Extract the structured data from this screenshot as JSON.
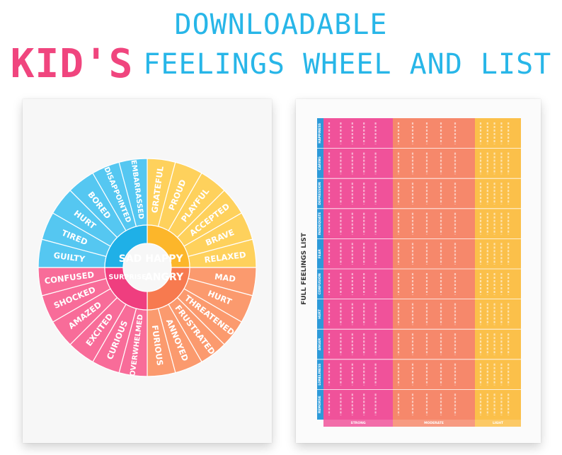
{
  "header": {
    "line1": "DOWNLOADABLE",
    "kids": "KID'S",
    "line2_rest": "FEELINGS WHEEL AND LIST"
  },
  "wheel": {
    "center": {
      "sad": "SAD",
      "happy": "HAPPY",
      "surprised": "SURPRISED",
      "angry": "ANGRY"
    },
    "outer_words": [
      "GRATEFUL",
      "PROUD",
      "PLAYFUL",
      "ACCEPTED",
      "BRAVE",
      "RELAXED",
      "MAD",
      "HURT",
      "THREATENED",
      "FRUSTRATED",
      "ANNOYED",
      "FURIOUS",
      "OVERWHELMED",
      "CURIOUS",
      "EXCITED",
      "AMAZED",
      "SHOCKED",
      "CONFUSED",
      "GUILTY",
      "TIRED",
      "HURT",
      "BORED",
      "DISAPPOINTED",
      "EMBARRASSED"
    ],
    "colors": {
      "happy_dark": "#fcb62a",
      "happy_light": "#fed15c",
      "angry_dark": "#f77a4f",
      "angry_light": "#fb9a6e",
      "surprised_dark": "#ef3e7f",
      "surprised_light": "#f86c99",
      "sad_dark": "#1fb0e7",
      "sad_light": "#55c7f1"
    }
  },
  "list": {
    "title": "FULL FEELINGS LIST",
    "rows": [
      "HAPPINESS",
      "CARING",
      "DEPRESSION",
      "INADEQUATE",
      "FEAR",
      "CONFUSION",
      "HURT",
      "ANGER",
      "LONELINESS",
      "REMORSE"
    ],
    "columns": [
      "STRONG",
      "MODERATE",
      "LIGHT"
    ],
    "colors": {
      "header": "#2d9ad9",
      "strong": "#f0529a",
      "moderate": "#f6886b",
      "light": "#fbc04a"
    }
  }
}
